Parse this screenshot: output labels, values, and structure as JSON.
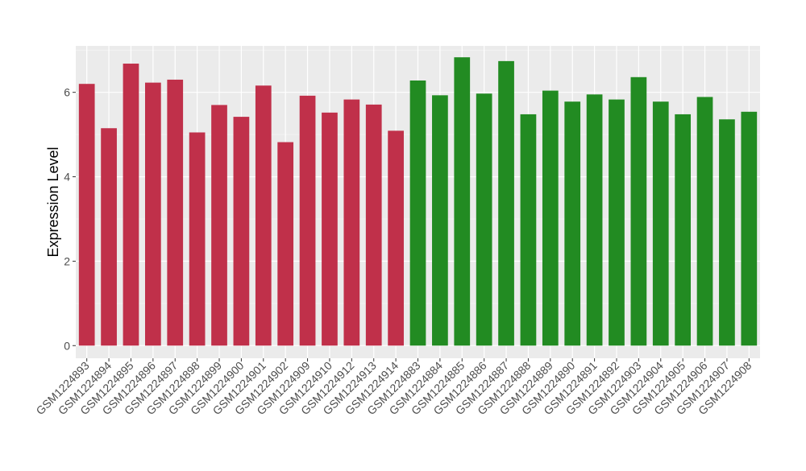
{
  "chart_data": {
    "type": "bar",
    "title": "",
    "xlabel": "",
    "ylabel": "Expression Level",
    "ylim": [
      -0.3,
      7.1
    ],
    "yticks": [
      0,
      2,
      4,
      6
    ],
    "grid": true,
    "legend": "none",
    "categories": [
      "GSM1224893",
      "GSM1224894",
      "GSM1224895",
      "GSM1224896",
      "GSM1224897",
      "GSM1224898",
      "GSM1224899",
      "GSM1224900",
      "GSM1224901",
      "GSM1224902",
      "GSM1224909",
      "GSM1224910",
      "GSM1224912",
      "GSM1224913",
      "GSM1224914",
      "GSM1224883",
      "GSM1224884",
      "GSM1224885",
      "GSM1224886",
      "GSM1224887",
      "GSM1224888",
      "GSM1224889",
      "GSM1224890",
      "GSM1224891",
      "GSM1224892",
      "GSM1224903",
      "GSM1224904",
      "GSM1224905",
      "GSM1224906",
      "GSM1224907",
      "GSM1224908"
    ],
    "values": [
      6.2,
      5.15,
      6.68,
      6.23,
      6.3,
      5.05,
      5.7,
      5.42,
      6.16,
      4.82,
      5.92,
      5.52,
      5.83,
      5.71,
      5.09,
      6.28,
      5.93,
      6.83,
      5.97,
      6.74,
      5.48,
      6.04,
      5.78,
      5.95,
      5.83,
      6.36,
      5.78,
      5.48,
      5.89,
      5.36,
      5.54
    ],
    "groups": [
      {
        "count": 15,
        "color": "#c0304a"
      },
      {
        "count": 16,
        "color": "#228b22"
      }
    ],
    "colors": {
      "panel": "#ebebeb",
      "grid_major": "#ffffff",
      "grid_minor": "#f5f5f5",
      "axis_text": "#4d4d4d",
      "axis_title": "#000000"
    }
  }
}
